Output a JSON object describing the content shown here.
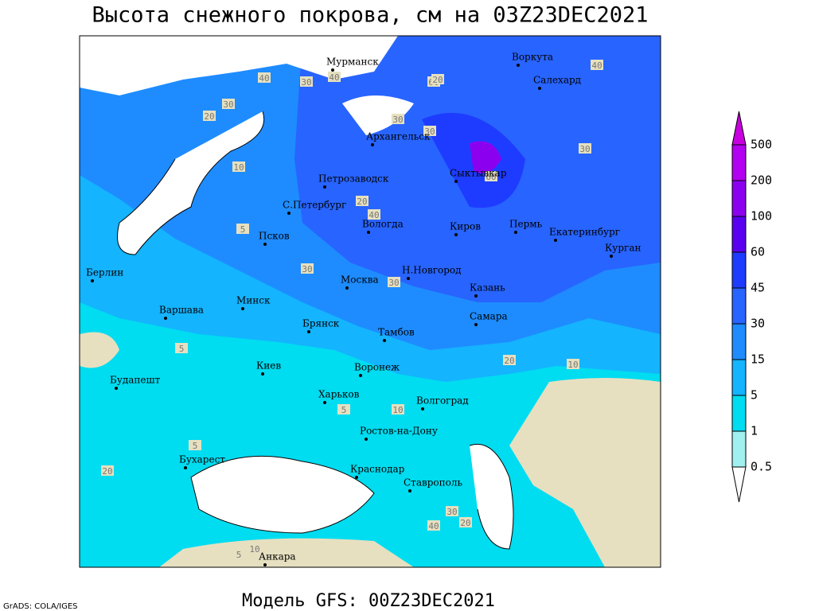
{
  "title": "Высота снежного покрова, см на 03Z23DEC2021",
  "footer": "Модель GFS: 00Z23DEC2021",
  "credit": "GrADS: COLA/IGES",
  "cities": [
    "Мурманск",
    "Воркута",
    "Салехард",
    "Архангельск",
    "Сыктывкар",
    "Петрозаводск",
    "С.Петербург",
    "Вологда",
    "Киров",
    "Пермь",
    "Екатеринбург",
    "Курган",
    "Псков",
    "Берлин",
    "Н.Новгород",
    "Москва",
    "Казань",
    "Варшава",
    "Минск",
    "Самара",
    "Брянск",
    "Тамбов",
    "Киев",
    "Воронеж",
    "Харьков",
    "Будапешт",
    "Волгоград",
    "Ростов-на-Дону",
    "Бухарест",
    "Краснодар",
    "Ставрополь",
    "Анкара"
  ],
  "contour_labels": [
    "40",
    "30",
    "20",
    "30",
    "40",
    "60",
    "20",
    "10",
    "30",
    "40",
    "30",
    "60",
    "40",
    "30",
    "20",
    "5",
    "30",
    "30",
    "10",
    "5",
    "5",
    "20",
    "5",
    "10",
    "20",
    "30",
    "40",
    "20",
    "5",
    "10"
  ],
  "legend": {
    "levels": [
      500,
      200,
      100,
      60,
      45,
      30,
      15,
      5,
      1,
      0.5
    ],
    "colors": [
      "#b400f0",
      "#8c00f0",
      "#5a00f0",
      "#1e3cff",
      "#2864ff",
      "#1e8cff",
      "#14b4ff",
      "#00dcf0",
      "#a0f0f0"
    ],
    "top_color": "#c800e0"
  }
}
